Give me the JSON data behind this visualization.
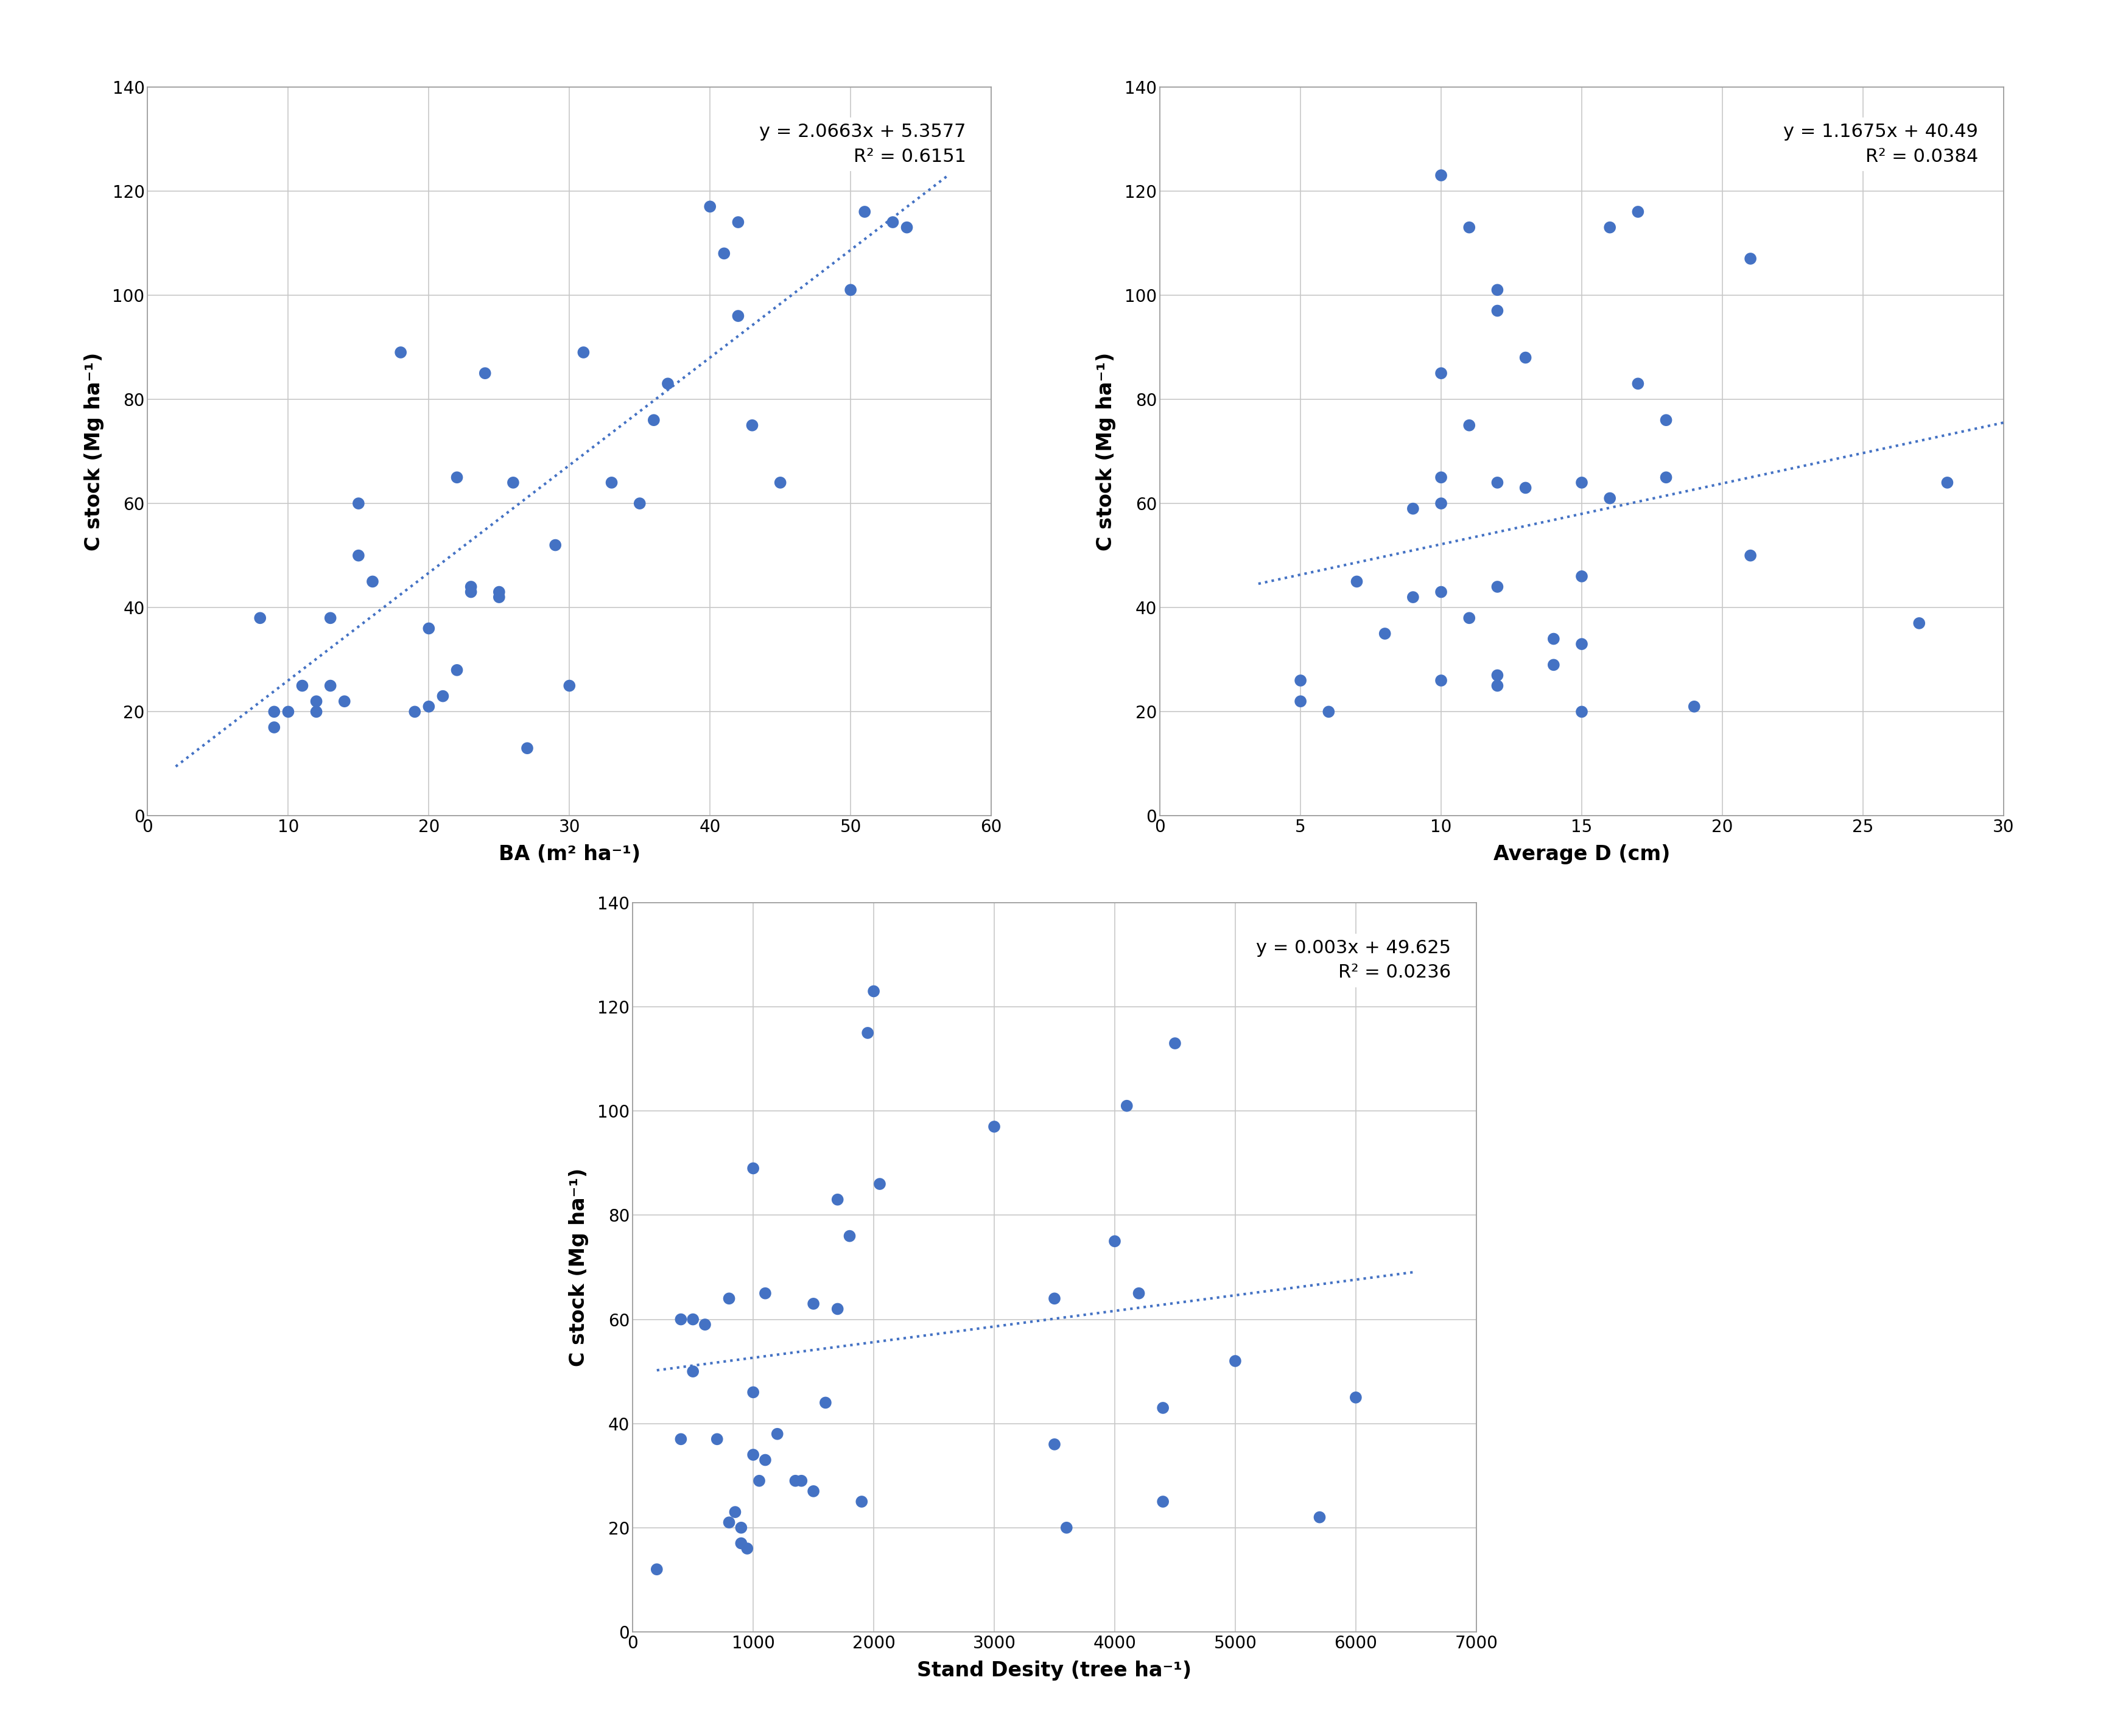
{
  "plot1": {
    "xlabel": "BA (m² ha⁻¹)",
    "ylabel": "C stock (Mg ha⁻¹)",
    "equation": "y = 2.0663x + 5.3577",
    "r2": "R² = 0.6151",
    "xlim": [
      0,
      60
    ],
    "ylim": [
      0,
      140
    ],
    "xticks": [
      0,
      10,
      20,
      30,
      40,
      50,
      60
    ],
    "yticks": [
      0,
      20,
      40,
      60,
      80,
      100,
      120,
      140
    ],
    "slope": 2.0663,
    "intercept": 5.3577,
    "x_line_start": 2,
    "x_line_end": 57,
    "scatter_x": [
      8,
      9,
      9,
      10,
      11,
      12,
      12,
      13,
      13,
      14,
      15,
      15,
      16,
      18,
      19,
      20,
      20,
      21,
      22,
      22,
      23,
      23,
      24,
      25,
      25,
      26,
      27,
      29,
      30,
      31,
      33,
      35,
      36,
      37,
      40,
      41,
      42,
      42,
      43,
      45,
      50,
      51,
      53,
      54
    ],
    "scatter_y": [
      38,
      17,
      20,
      20,
      25,
      20,
      22,
      25,
      38,
      22,
      50,
      60,
      45,
      89,
      20,
      21,
      36,
      23,
      28,
      65,
      44,
      43,
      85,
      42,
      43,
      64,
      13,
      52,
      25,
      89,
      64,
      60,
      76,
      83,
      117,
      108,
      114,
      96,
      75,
      64,
      101,
      116,
      114,
      113
    ]
  },
  "plot2": {
    "xlabel": "Average D (cm)",
    "ylabel": "C stock (Mg ha⁻¹)",
    "equation": "y = 1.1675x + 40.49",
    "r2": "R² = 0.0384",
    "xlim": [
      0,
      30
    ],
    "ylim": [
      0,
      140
    ],
    "xticks": [
      0,
      5,
      10,
      15,
      20,
      25,
      30
    ],
    "yticks": [
      0,
      20,
      40,
      60,
      80,
      100,
      120,
      140
    ],
    "slope": 1.1675,
    "intercept": 40.49,
    "x_line_start": 3.5,
    "x_line_end": 30,
    "scatter_x": [
      5,
      5,
      6,
      7,
      8,
      9,
      9,
      10,
      10,
      10,
      10,
      10,
      10,
      11,
      11,
      11,
      12,
      12,
      12,
      12,
      12,
      12,
      13,
      13,
      14,
      14,
      15,
      15,
      15,
      15,
      16,
      16,
      17,
      17,
      18,
      18,
      19,
      21,
      21,
      27,
      28
    ],
    "scatter_y": [
      22,
      26,
      20,
      45,
      35,
      59,
      42,
      123,
      85,
      65,
      60,
      43,
      26,
      113,
      75,
      38,
      101,
      97,
      64,
      44,
      25,
      27,
      88,
      63,
      29,
      34,
      64,
      46,
      33,
      20,
      113,
      61,
      116,
      83,
      76,
      65,
      21,
      50,
      107,
      37,
      64
    ]
  },
  "plot3": {
    "xlabel": "Stand Desity (tree ha⁻¹)",
    "ylabel": "C stock (Mg ha⁻¹)",
    "equation": "y = 0.003x + 49.625",
    "r2": "R² = 0.0236",
    "xlim": [
      0,
      7000
    ],
    "ylim": [
      0,
      140
    ],
    "xticks": [
      0,
      1000,
      2000,
      3000,
      4000,
      5000,
      6000,
      7000
    ],
    "yticks": [
      0,
      20,
      40,
      60,
      80,
      100,
      120,
      140
    ],
    "slope": 0.003,
    "intercept": 49.625,
    "x_line_start": 200,
    "x_line_end": 6500,
    "scatter_x": [
      200,
      400,
      400,
      500,
      500,
      600,
      700,
      800,
      800,
      850,
      900,
      900,
      950,
      1000,
      1000,
      1000,
      1050,
      1100,
      1100,
      1200,
      1350,
      1400,
      1500,
      1500,
      1600,
      1700,
      1700,
      1800,
      1900,
      1950,
      2000,
      2050,
      3000,
      3500,
      3500,
      3600,
      4000,
      4100,
      4200,
      4400,
      4400,
      4500,
      5000,
      5700,
      6000
    ],
    "scatter_y": [
      12,
      37,
      60,
      50,
      60,
      59,
      37,
      64,
      21,
      23,
      17,
      20,
      16,
      89,
      46,
      34,
      29,
      65,
      33,
      38,
      29,
      29,
      27,
      63,
      44,
      83,
      62,
      76,
      25,
      115,
      123,
      86,
      97,
      36,
      64,
      20,
      75,
      101,
      65,
      43,
      25,
      113,
      52,
      22,
      45
    ]
  },
  "dot_color": "#4472C4",
  "line_color": "#4472C4",
  "background_color": "#ffffff",
  "grid_color": "#c8c8c8",
  "annotation_fontsize": 22,
  "axis_label_fontsize": 24,
  "tick_fontsize": 20
}
